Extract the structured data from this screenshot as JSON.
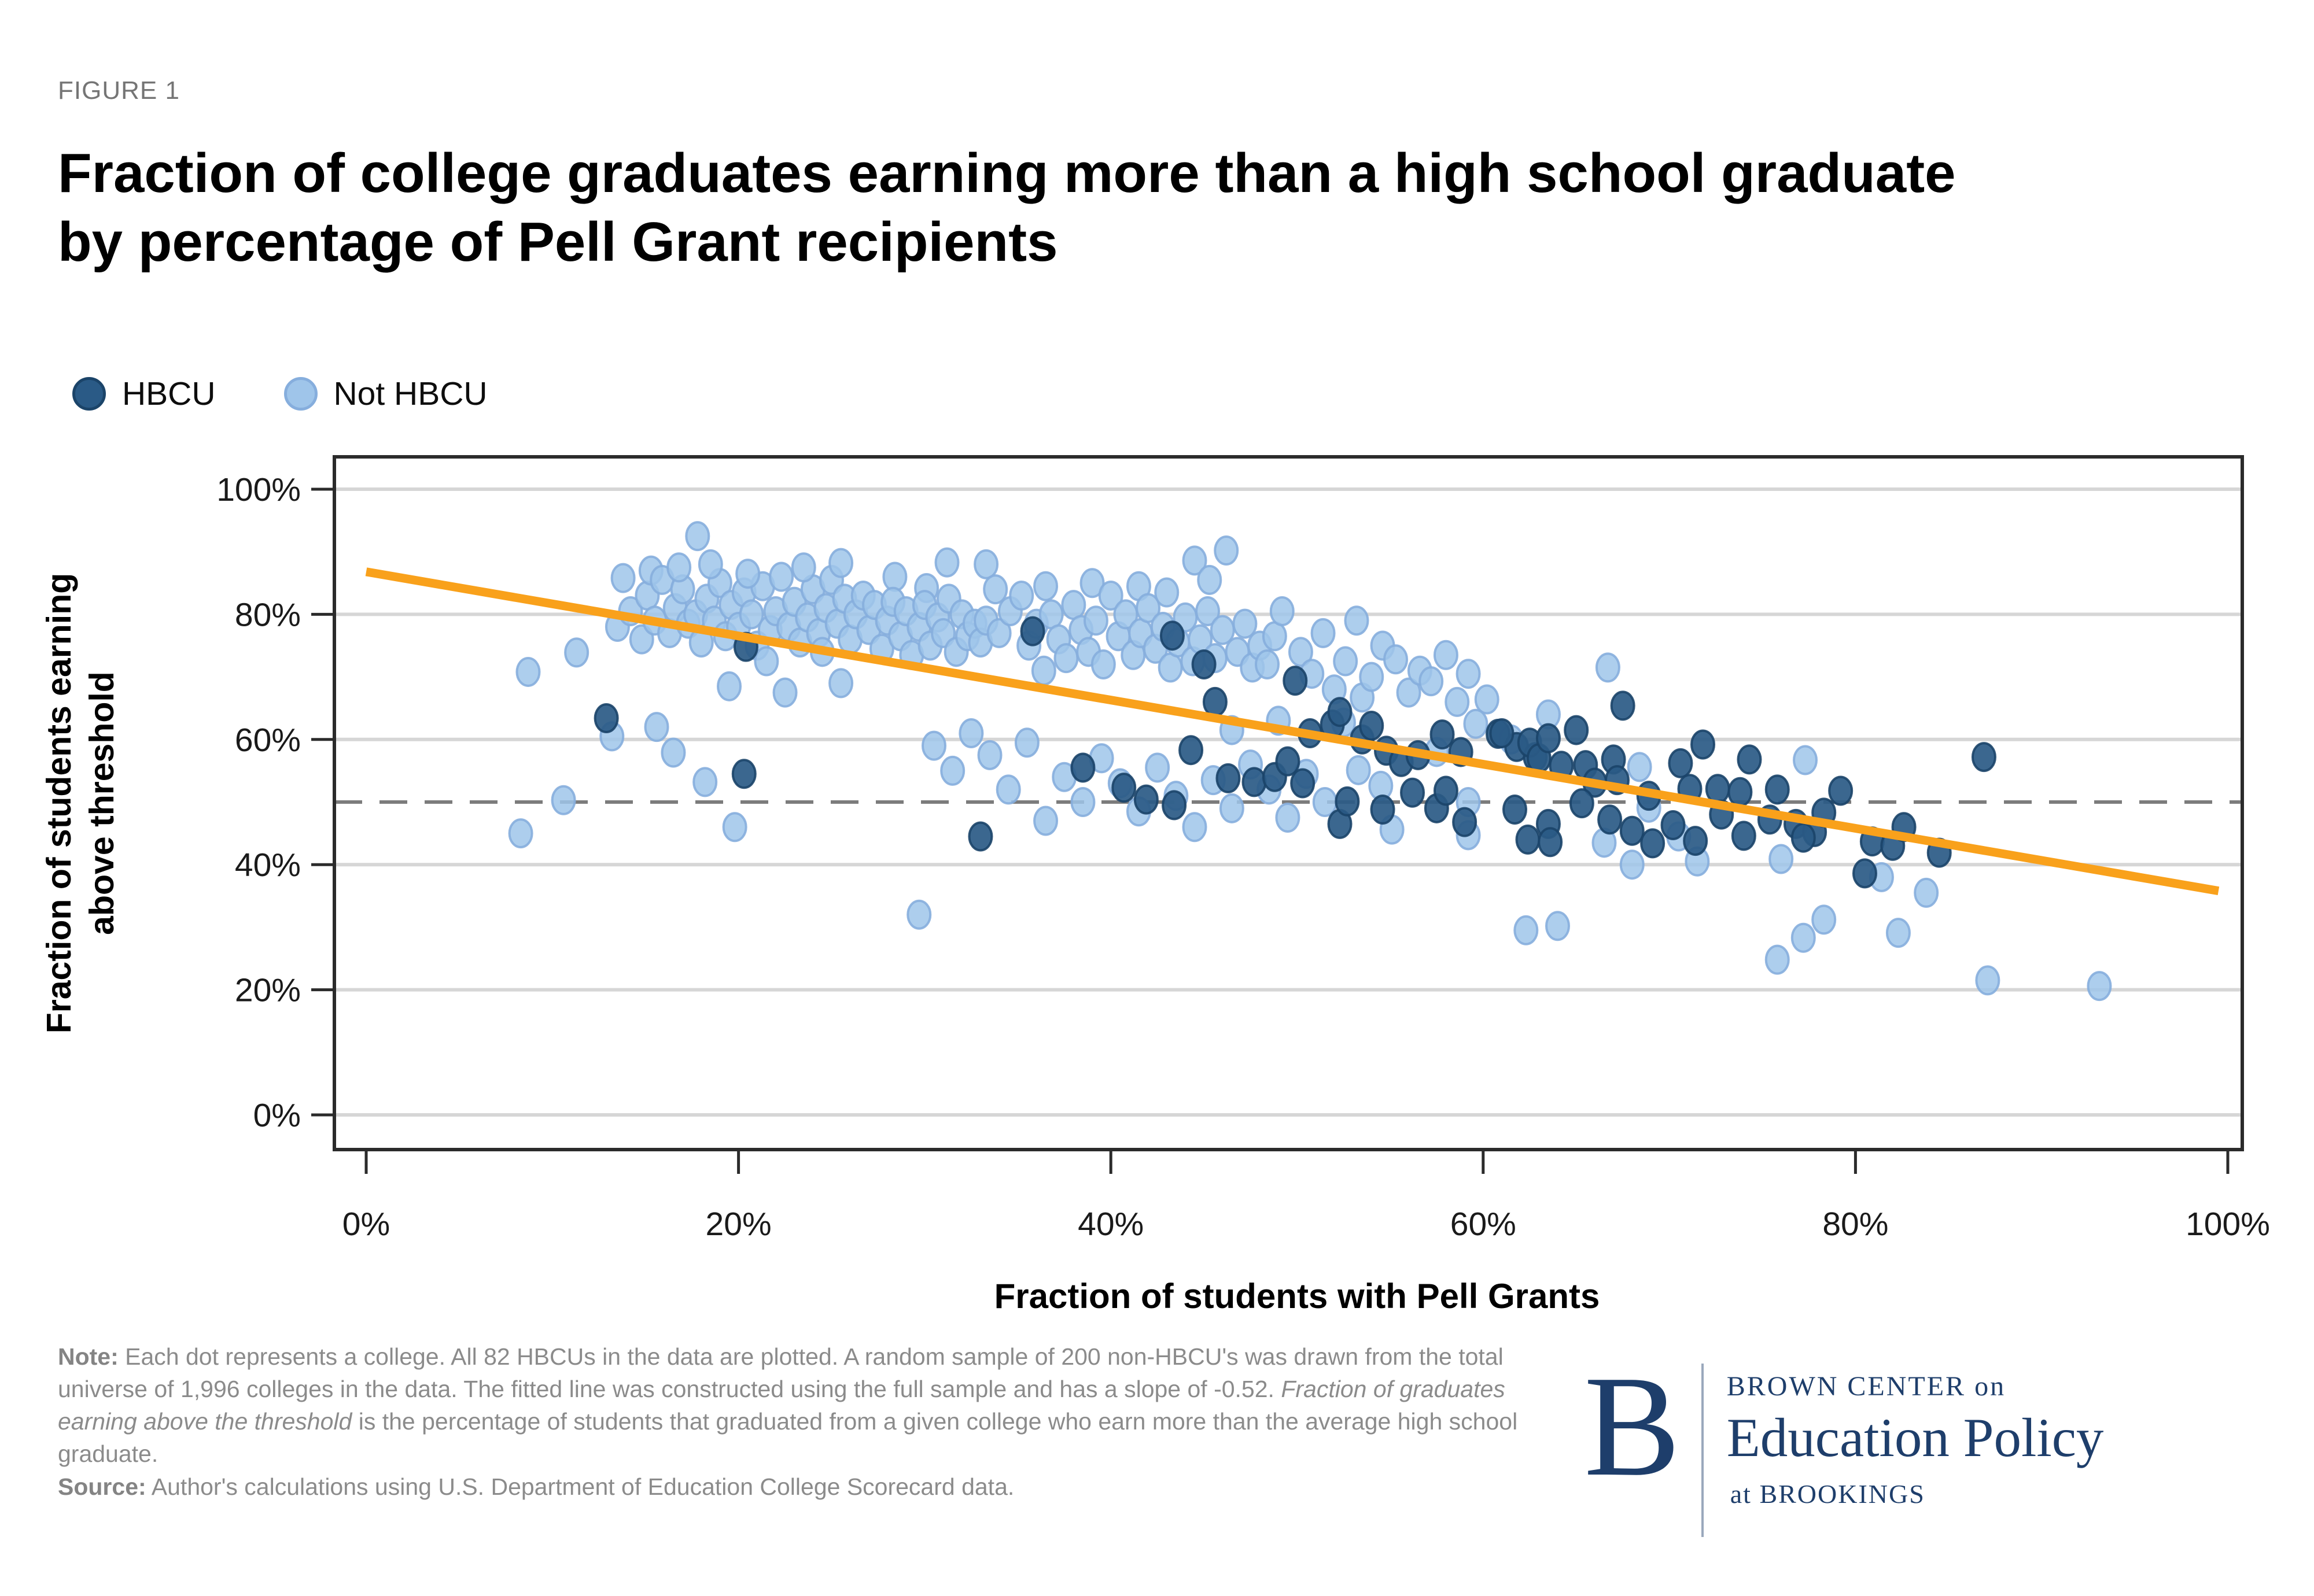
{
  "figure_label": "FIGURE 1",
  "title": {
    "line1": "Fraction of college graduates earning more than a high school graduate",
    "line2": "by percentage of Pell Grant recipients"
  },
  "legend": {
    "hbcu_label": "HBCU",
    "not_hbcu_label": "Not HBCU"
  },
  "note": {
    "label": "Note:",
    "part1": " Each dot represents a college. All 82 HBCUs in the data are plotted. A random sample of 200 non-HBCU's was drawn from the total universe of 1,996 colleges in the data. The fitted line was constructed using the full sample and has a slope of -0.52. ",
    "italic": "Fraction of graduates earning above the threshold",
    "part2": " is the percentage of students that graduated from a given college who earn more than the average high school graduate."
  },
  "source": {
    "label": "Source:",
    "text": " Author's calculations using U.S. Department of Education College Scorecard data."
  },
  "logo": {
    "b": "B",
    "line1": "BROWN CENTER on",
    "line2": "Education Policy",
    "line3": "at BROOKINGS"
  },
  "colors": {
    "hbcu_fill": "#2a5a86",
    "hbcu_stroke": "#1b4469",
    "not_hbcu_fill": "#9fc5ea",
    "not_hbcu_stroke": "#86aedd",
    "fit_line": "#f9a11b",
    "dashed_line": "#7c7c7c",
    "gridline": "#d6d6d6",
    "frame": "#2b2b2b",
    "tick_text": "#1a1a1a",
    "logo_navy": "#1e3e6b"
  },
  "chart_data": {
    "type": "scatter",
    "xlabel": "Fraction of students with Pell Grants",
    "ylabel_line1": "Fraction of students earning",
    "ylabel_line2": "above threshold",
    "xlim": [
      0,
      100
    ],
    "ylim": [
      0,
      100
    ],
    "grid": "horizontal",
    "legend_position": "top-left",
    "x_ticks": [
      {
        "v": 0,
        "label": "0%"
      },
      {
        "v": 20,
        "label": "20%"
      },
      {
        "v": 40,
        "label": "40%"
      },
      {
        "v": 60,
        "label": "60%"
      },
      {
        "v": 80,
        "label": "80%"
      },
      {
        "v": 100,
        "label": "100%"
      }
    ],
    "y_ticks": [
      {
        "v": 0,
        "label": "0%"
      },
      {
        "v": 20,
        "label": "20%"
      },
      {
        "v": 40,
        "label": "40%"
      },
      {
        "v": 60,
        "label": "60%"
      },
      {
        "v": 80,
        "label": "80%"
      },
      {
        "v": 100,
        "label": "100%"
      }
    ],
    "reference_line": {
      "y": 50,
      "style": "dashed"
    },
    "fit_line": {
      "x_start": 0,
      "y_start": 86.8,
      "x_end": 99.5,
      "y_end": 35.8,
      "slope": -0.52
    },
    "series": [
      {
        "name": "HBCU",
        "points": [
          [
            12.9,
            63.4
          ],
          [
            20.3,
            54.5
          ],
          [
            20.4,
            74.8
          ],
          [
            33.0,
            44.5
          ],
          [
            35.8,
            77.3
          ],
          [
            43.3,
            76.6
          ],
          [
            45.0,
            72.0
          ],
          [
            45.6,
            66.0
          ],
          [
            49.9,
            69.4
          ],
          [
            38.5,
            55.5
          ],
          [
            40.7,
            52.3
          ],
          [
            41.9,
            50.4
          ],
          [
            43.4,
            49.5
          ],
          [
            44.3,
            58.3
          ],
          [
            46.3,
            53.8
          ],
          [
            47.7,
            53.2
          ],
          [
            48.8,
            54.0
          ],
          [
            49.5,
            56.5
          ],
          [
            50.3,
            53.0
          ],
          [
            50.7,
            61.0
          ],
          [
            51.9,
            62.4
          ],
          [
            52.3,
            64.4
          ],
          [
            53.5,
            60.0
          ],
          [
            54.0,
            62.2
          ],
          [
            54.8,
            58.2
          ],
          [
            55.6,
            56.4
          ],
          [
            52.3,
            46.5
          ],
          [
            52.7,
            50.1
          ],
          [
            54.6,
            48.8
          ],
          [
            56.2,
            51.5
          ],
          [
            57.5,
            49.0
          ],
          [
            58.0,
            51.8
          ],
          [
            59.0,
            46.8
          ],
          [
            56.5,
            57.5
          ],
          [
            57.8,
            60.8
          ],
          [
            58.8,
            58.0
          ],
          [
            60.8,
            60.9
          ],
          [
            61.8,
            58.8
          ],
          [
            62.8,
            57.2
          ],
          [
            61.0,
            61.0
          ],
          [
            62.5,
            59.5
          ],
          [
            63.0,
            57.0
          ],
          [
            63.5,
            60.2
          ],
          [
            64.2,
            55.8
          ],
          [
            65.0,
            61.5
          ],
          [
            65.5,
            55.9
          ],
          [
            66.0,
            53.1
          ],
          [
            67.0,
            56.8
          ],
          [
            67.2,
            53.5
          ],
          [
            67.5,
            65.4
          ],
          [
            61.7,
            48.8
          ],
          [
            62.4,
            44.0
          ],
          [
            63.5,
            46.5
          ],
          [
            63.6,
            43.6
          ],
          [
            65.3,
            49.8
          ],
          [
            66.8,
            47.2
          ],
          [
            68.0,
            45.4
          ],
          [
            69.1,
            43.4
          ],
          [
            68.9,
            51.0
          ],
          [
            70.6,
            56.2
          ],
          [
            71.1,
            52.1
          ],
          [
            71.8,
            59.2
          ],
          [
            72.6,
            52.1
          ],
          [
            73.8,
            51.6
          ],
          [
            74.3,
            56.8
          ],
          [
            75.8,
            52.0
          ],
          [
            70.2,
            46.3
          ],
          [
            71.4,
            43.8
          ],
          [
            72.8,
            48.0
          ],
          [
            74.0,
            44.6
          ],
          [
            75.4,
            47.2
          ],
          [
            76.8,
            46.5
          ],
          [
            77.8,
            45.2
          ],
          [
            77.2,
            44.3
          ],
          [
            78.3,
            48.3
          ],
          [
            79.2,
            51.8
          ],
          [
            80.9,
            43.7
          ],
          [
            82.0,
            43.0
          ],
          [
            82.6,
            46.0
          ],
          [
            84.5,
            41.9
          ],
          [
            86.9,
            57.2
          ],
          [
            80.5,
            38.6
          ]
        ]
      },
      {
        "name": "Not HBCU",
        "points": [
          [
            8.7,
            70.8
          ],
          [
            11.3,
            73.9
          ],
          [
            8.3,
            45.0
          ],
          [
            10.6,
            50.3
          ],
          [
            13.2,
            60.5
          ],
          [
            15.6,
            62.0
          ],
          [
            16.5,
            57.9
          ],
          [
            18.2,
            53.2
          ],
          [
            19.8,
            46.0
          ],
          [
            17.8,
            92.5
          ],
          [
            29.7,
            32.0
          ],
          [
            13.5,
            78.0
          ],
          [
            13.8,
            85.8
          ],
          [
            14.2,
            80.5
          ],
          [
            14.8,
            76.0
          ],
          [
            15.1,
            83.0
          ],
          [
            15.3,
            87.0
          ],
          [
            15.5,
            79.0
          ],
          [
            15.9,
            85.5
          ],
          [
            16.3,
            77.0
          ],
          [
            16.6,
            81.0
          ],
          [
            17.0,
            84.0
          ],
          [
            17.3,
            78.5
          ],
          [
            17.7,
            80.0
          ],
          [
            18.0,
            75.5
          ],
          [
            18.3,
            82.5
          ],
          [
            18.7,
            79.0
          ],
          [
            19.0,
            85.0
          ],
          [
            19.3,
            76.5
          ],
          [
            19.6,
            81.5
          ],
          [
            20.0,
            78.0
          ],
          [
            20.3,
            83.5
          ],
          [
            20.7,
            80.0
          ],
          [
            21.0,
            75.0
          ],
          [
            21.3,
            84.5
          ],
          [
            21.7,
            77.5
          ],
          [
            22.0,
            80.5
          ],
          [
            22.3,
            86.0
          ],
          [
            22.7,
            78.0
          ],
          [
            23.0,
            82.0
          ],
          [
            23.3,
            75.5
          ],
          [
            23.7,
            79.5
          ],
          [
            24.0,
            84.0
          ],
          [
            24.3,
            77.0
          ],
          [
            24.7,
            81.0
          ],
          [
            25.0,
            85.5
          ],
          [
            25.3,
            78.5
          ],
          [
            25.7,
            82.5
          ],
          [
            26.0,
            76.0
          ],
          [
            26.3,
            80.0
          ],
          [
            26.7,
            83.0
          ],
          [
            27.0,
            77.5
          ],
          [
            27.3,
            81.5
          ],
          [
            25.5,
            88.2
          ],
          [
            23.5,
            87.5
          ],
          [
            16.8,
            87.5
          ],
          [
            18.5,
            88.0
          ],
          [
            20.5,
            86.5
          ],
          [
            28.4,
            86.0
          ],
          [
            30.1,
            84.2
          ],
          [
            31.2,
            88.3
          ],
          [
            33.3,
            88.0
          ],
          [
            19.5,
            68.5
          ],
          [
            22.5,
            67.5
          ],
          [
            25.5,
            69.0
          ],
          [
            24.5,
            74.0
          ],
          [
            21.5,
            72.5
          ],
          [
            27.7,
            74.5
          ],
          [
            28.0,
            79.0
          ],
          [
            28.3,
            82.0
          ],
          [
            28.7,
            76.5
          ],
          [
            29.0,
            80.5
          ],
          [
            29.3,
            73.5
          ],
          [
            29.7,
            78.0
          ],
          [
            30.0,
            81.5
          ],
          [
            30.3,
            75.0
          ],
          [
            30.7,
            79.5
          ],
          [
            31.0,
            77.0
          ],
          [
            31.3,
            82.5
          ],
          [
            31.7,
            74.0
          ],
          [
            32.0,
            80.0
          ],
          [
            32.3,
            76.5
          ],
          [
            32.7,
            78.5
          ],
          [
            33.0,
            75.5
          ],
          [
            33.3,
            79.0
          ],
          [
            34.0,
            77.0
          ],
          [
            34.6,
            80.5
          ],
          [
            33.8,
            84.0
          ],
          [
            35.2,
            83.0
          ],
          [
            35.6,
            75.0
          ],
          [
            36.0,
            78.5
          ],
          [
            36.4,
            71.0
          ],
          [
            36.5,
            84.5
          ],
          [
            36.8,
            80.0
          ],
          [
            37.2,
            76.0
          ],
          [
            37.6,
            73.0
          ],
          [
            38.0,
            81.5
          ],
          [
            38.4,
            77.5
          ],
          [
            38.8,
            74.0
          ],
          [
            39.0,
            85.0
          ],
          [
            39.2,
            79.0
          ],
          [
            39.6,
            72.0
          ],
          [
            40.0,
            83.0
          ],
          [
            40.4,
            76.5
          ],
          [
            40.8,
            80.0
          ],
          [
            41.2,
            73.5
          ],
          [
            41.5,
            84.5
          ],
          [
            41.6,
            77.0
          ],
          [
            42.0,
            81.0
          ],
          [
            42.4,
            74.5
          ],
          [
            42.8,
            78.0
          ],
          [
            43.0,
            83.5
          ],
          [
            43.2,
            71.5
          ],
          [
            43.6,
            75.5
          ],
          [
            44.0,
            79.5
          ],
          [
            44.4,
            72.5
          ],
          [
            44.8,
            76.0
          ],
          [
            45.2,
            80.5
          ],
          [
            45.6,
            73.0
          ],
          [
            46.0,
            77.5
          ],
          [
            46.8,
            74.0
          ],
          [
            47.2,
            78.5
          ],
          [
            47.6,
            71.5
          ],
          [
            48.0,
            75.0
          ],
          [
            44.5,
            88.6
          ],
          [
            45.3,
            85.5
          ],
          [
            46.2,
            90.2
          ],
          [
            48.4,
            72.0
          ],
          [
            48.8,
            76.5
          ],
          [
            49.2,
            80.5
          ],
          [
            50.2,
            74.0
          ],
          [
            50.8,
            70.5
          ],
          [
            51.4,
            77.0
          ],
          [
            52.0,
            68.0
          ],
          [
            52.6,
            72.5
          ],
          [
            53.2,
            79.0
          ],
          [
            53.5,
            66.7
          ],
          [
            54.0,
            70.0
          ],
          [
            54.6,
            75.0
          ],
          [
            55.3,
            72.8
          ],
          [
            56.0,
            67.5
          ],
          [
            56.6,
            71.0
          ],
          [
            57.2,
            69.3
          ],
          [
            58.0,
            73.5
          ],
          [
            58.6,
            66.0
          ],
          [
            59.2,
            70.5
          ],
          [
            60.2,
            66.4
          ],
          [
            30.5,
            59.0
          ],
          [
            31.5,
            55.0
          ],
          [
            32.5,
            61.0
          ],
          [
            33.5,
            57.5
          ],
          [
            34.5,
            52.0
          ],
          [
            35.5,
            59.5
          ],
          [
            36.5,
            47.0
          ],
          [
            37.5,
            54.0
          ],
          [
            38.5,
            50.0
          ],
          [
            39.5,
            57.0
          ],
          [
            40.5,
            53.0
          ],
          [
            41.5,
            48.5
          ],
          [
            42.5,
            55.5
          ],
          [
            43.5,
            51.0
          ],
          [
            44.5,
            46.0
          ],
          [
            45.5,
            53.5
          ],
          [
            46.5,
            49.0
          ],
          [
            47.5,
            56.0
          ],
          [
            48.5,
            52.0
          ],
          [
            49.5,
            47.5
          ],
          [
            50.5,
            54.5
          ],
          [
            51.5,
            50.0
          ],
          [
            52.5,
            62.7
          ],
          [
            53.3,
            55.1
          ],
          [
            54.5,
            52.6
          ],
          [
            55.1,
            45.6
          ],
          [
            57.5,
            58.0
          ],
          [
            59.2,
            50.0
          ],
          [
            59.2,
            44.7
          ],
          [
            61.5,
            60.0
          ],
          [
            63.5,
            64.0
          ],
          [
            66.7,
            71.5
          ],
          [
            68.4,
            55.6
          ],
          [
            68.9,
            49.1
          ],
          [
            59.6,
            62.5
          ],
          [
            49.0,
            63.0
          ],
          [
            46.5,
            61.5
          ],
          [
            62.3,
            29.5
          ],
          [
            64.0,
            30.2
          ],
          [
            66.5,
            43.5
          ],
          [
            68.0,
            40.0
          ],
          [
            70.5,
            44.5
          ],
          [
            71.5,
            40.5
          ],
          [
            77.3,
            56.7
          ],
          [
            76.0,
            40.9
          ],
          [
            81.4,
            38.0
          ],
          [
            78.3,
            31.2
          ],
          [
            77.2,
            28.3
          ],
          [
            82.3,
            29.1
          ],
          [
            83.8,
            35.5
          ],
          [
            87.1,
            21.5
          ],
          [
            93.1,
            20.6
          ],
          [
            75.8,
            24.8
          ]
        ]
      }
    ]
  }
}
